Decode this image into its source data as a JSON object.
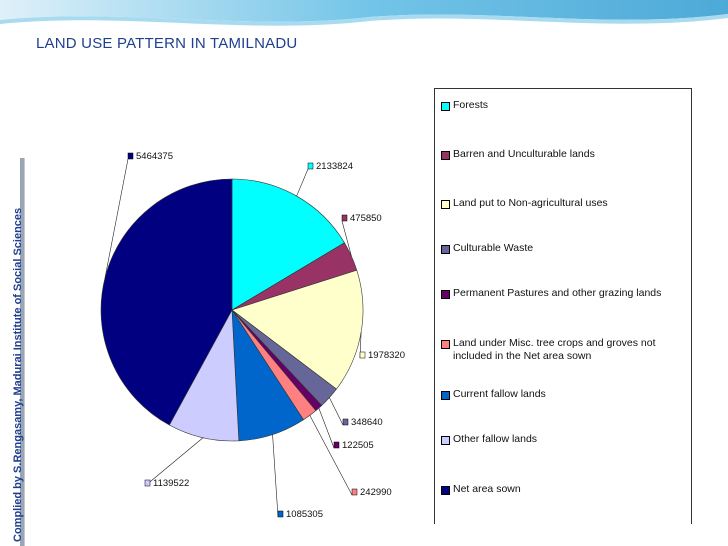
{
  "slide": {
    "title": "LAND USE PATTERN IN TAMILNADU",
    "credit": "Complied by S.Rengasamy, Madurai Institute of Social Sciences"
  },
  "colors": {
    "header_band": "#3aa6d8",
    "title": "#1f3f8f"
  },
  "chart_data": {
    "type": "pie",
    "title": "",
    "legend_position": "right",
    "categories": [
      "Forests",
      "Barren and Unculturable lands",
      "Land put to Non-agricultural uses",
      "Culturable Waste",
      "Permanent Pastures and other grazing lands",
      "Land under Misc. tree crops and groves not included in the Net area sown",
      "Current fallow lands",
      "Other fallow lands",
      "Net area sown"
    ],
    "values": [
      2133824,
      475850,
      1978320,
      348640,
      122505,
      242990,
      1085305,
      1139522,
      5464375
    ],
    "labels": [
      "2133824",
      "475850",
      "1978320",
      "348640",
      "122505",
      "242990",
      "1085305",
      "1139522",
      "5464375"
    ],
    "colors": [
      "#00ffff",
      "#993366",
      "#ffffcc",
      "#666699",
      "#660066",
      "#ff8080",
      "#0066cc",
      "#ccccff",
      "#000080"
    ]
  }
}
